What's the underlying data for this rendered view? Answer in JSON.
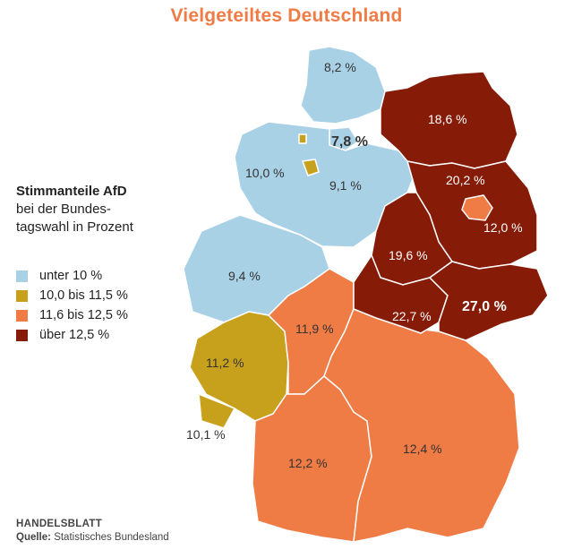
{
  "title": "Vielgeteiltes Deutschland",
  "legend": {
    "heading": "Stimmanteile AfD",
    "subheading_line1": "bei der Bundes-",
    "subheading_line2": "tagswahl in Prozent",
    "items": [
      {
        "label": "unter 10 %",
        "color": "#a9d1e6"
      },
      {
        "label": "10,0 bis 11,5 %",
        "color": "#c8a11c"
      },
      {
        "label": "11,6 bis 12,5 %",
        "color": "#ef7b45"
      },
      {
        "label": "über 12,5 %",
        "color": "#861c08"
      }
    ]
  },
  "regions": [
    {
      "value": "8,2 %",
      "category": 0
    },
    {
      "value": "7,8 %",
      "category": 0
    },
    {
      "value": "10,0 %",
      "category": 1
    },
    {
      "value": "9,1 %",
      "category": 0
    },
    {
      "value": "9,4 %",
      "category": 0
    },
    {
      "value": "11,2 %",
      "category": 1
    },
    {
      "value": "10,1 %",
      "category": 1
    },
    {
      "value": "11,9 %",
      "category": 2
    },
    {
      "value": "12,2 %",
      "category": 2
    },
    {
      "value": "12,4 %",
      "category": 2
    },
    {
      "value": "18,6 %",
      "category": 3
    },
    {
      "value": "20,2 %",
      "category": 3
    },
    {
      "value": "12,0 %",
      "category": 2
    },
    {
      "value": "19,6 %",
      "category": 3
    },
    {
      "value": "22,7 %",
      "category": 3
    },
    {
      "value": "27,0 %",
      "category": 3
    }
  ],
  "footer": {
    "brand": "HANDELSBLATT",
    "source_label": "Quelle:",
    "source": "Statistisches Bundesland"
  },
  "border_color": "#ffffff"
}
